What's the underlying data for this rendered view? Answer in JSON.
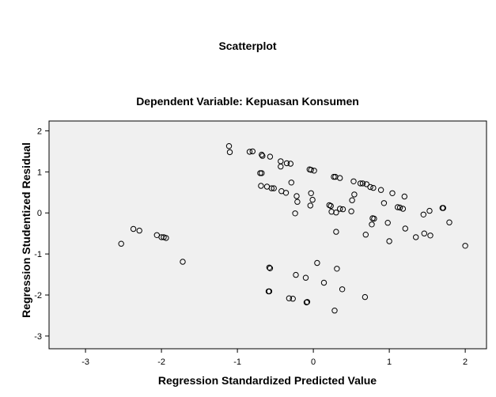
{
  "chart_data": {
    "type": "scatter",
    "title": "Scatterplot",
    "subtitle": "Dependent Variable: Kepuasan Konsumen",
    "xlabel": "Regression Standardized Predicted Value",
    "ylabel": "Regression Studentized Residual",
    "xlim": [
      -3.48,
      2.28
    ],
    "ylim": [
      -3.31,
      2.24
    ],
    "xticks": [
      -3,
      -2,
      -1,
      0,
      1,
      2
    ],
    "yticks": [
      -3,
      -2,
      -1,
      0,
      1,
      2
    ],
    "grid": false,
    "plot_background": "#f0f0f0",
    "marker": "open-circle",
    "marker_color": "#000000",
    "points": [
      [
        -2.53,
        -0.75
      ],
      [
        -2.37,
        -0.39
      ],
      [
        -2.29,
        -0.43
      ],
      [
        -2.06,
        -0.54
      ],
      [
        -2.0,
        -0.59
      ],
      [
        -1.97,
        -0.59
      ],
      [
        -1.94,
        -0.61
      ],
      [
        -1.72,
        -1.19
      ],
      [
        -1.11,
        1.63
      ],
      [
        -1.1,
        1.48
      ],
      [
        -0.84,
        1.49
      ],
      [
        -0.8,
        1.5
      ],
      [
        -0.68,
        1.42
      ],
      [
        -0.67,
        1.39
      ],
      [
        -0.57,
        1.37
      ],
      [
        -0.7,
        0.97
      ],
      [
        -0.68,
        0.97
      ],
      [
        -0.69,
        0.66
      ],
      [
        -0.61,
        0.64
      ],
      [
        -0.55,
        0.6
      ],
      [
        -0.52,
        0.6
      ],
      [
        -0.43,
        1.26
      ],
      [
        -0.43,
        1.13
      ],
      [
        -0.35,
        1.21
      ],
      [
        -0.3,
        1.2
      ],
      [
        -0.42,
        0.53
      ],
      [
        -0.36,
        0.49
      ],
      [
        -0.29,
        0.74
      ],
      [
        -0.22,
        0.41
      ],
      [
        -0.21,
        0.27
      ],
      [
        -0.24,
        -0.01
      ],
      [
        -0.05,
        1.06
      ],
      [
        -0.03,
        1.05
      ],
      [
        0.01,
        1.03
      ],
      [
        0.27,
        0.88
      ],
      [
        0.29,
        0.88
      ],
      [
        0.35,
        0.85
      ],
      [
        -0.03,
        0.48
      ],
      [
        -0.01,
        0.32
      ],
      [
        -0.04,
        0.18
      ],
      [
        0.21,
        0.19
      ],
      [
        0.23,
        0.17
      ],
      [
        0.24,
        0.03
      ],
      [
        0.3,
        0.01
      ],
      [
        0.35,
        0.1
      ],
      [
        0.39,
        0.09
      ],
      [
        0.5,
        0.04
      ],
      [
        0.51,
        0.31
      ],
      [
        0.54,
        0.45
      ],
      [
        0.53,
        0.77
      ],
      [
        0.62,
        0.72
      ],
      [
        0.65,
        0.72
      ],
      [
        0.7,
        0.7
      ],
      [
        0.75,
        0.63
      ],
      [
        0.79,
        0.61
      ],
      [
        0.89,
        0.56
      ],
      [
        0.93,
        0.24
      ],
      [
        1.04,
        0.48
      ],
      [
        1.11,
        0.14
      ],
      [
        1.14,
        0.13
      ],
      [
        1.18,
        0.1
      ],
      [
        1.2,
        0.4
      ],
      [
        0.78,
        -0.13
      ],
      [
        0.8,
        -0.14
      ],
      [
        0.77,
        -0.28
      ],
      [
        0.98,
        -0.24
      ],
      [
        0.69,
        -0.53
      ],
      [
        0.3,
        -0.46
      ],
      [
        1.0,
        -0.69
      ],
      [
        1.21,
        -0.38
      ],
      [
        1.35,
        -0.59
      ],
      [
        1.46,
        -0.5
      ],
      [
        1.45,
        -0.04
      ],
      [
        1.53,
        0.05
      ],
      [
        1.54,
        -0.55
      ],
      [
        1.7,
        0.12
      ],
      [
        1.71,
        0.12
      ],
      [
        1.79,
        -0.23
      ],
      [
        2.0,
        -0.8
      ],
      [
        -0.57,
        -1.35
      ],
      [
        -0.58,
        -1.33
      ],
      [
        -0.23,
        -1.51
      ],
      [
        -0.1,
        -1.58
      ],
      [
        0.05,
        -1.22
      ],
      [
        0.14,
        -1.7
      ],
      [
        0.31,
        -1.36
      ],
      [
        -0.58,
        -1.91
      ],
      [
        -0.59,
        -1.91
      ],
      [
        0.38,
        -1.86
      ],
      [
        -0.32,
        -2.08
      ],
      [
        -0.27,
        -2.09
      ],
      [
        -0.08,
        -2.17
      ],
      [
        -0.09,
        -2.18
      ],
      [
        0.68,
        -2.05
      ],
      [
        0.28,
        -2.38
      ]
    ]
  }
}
